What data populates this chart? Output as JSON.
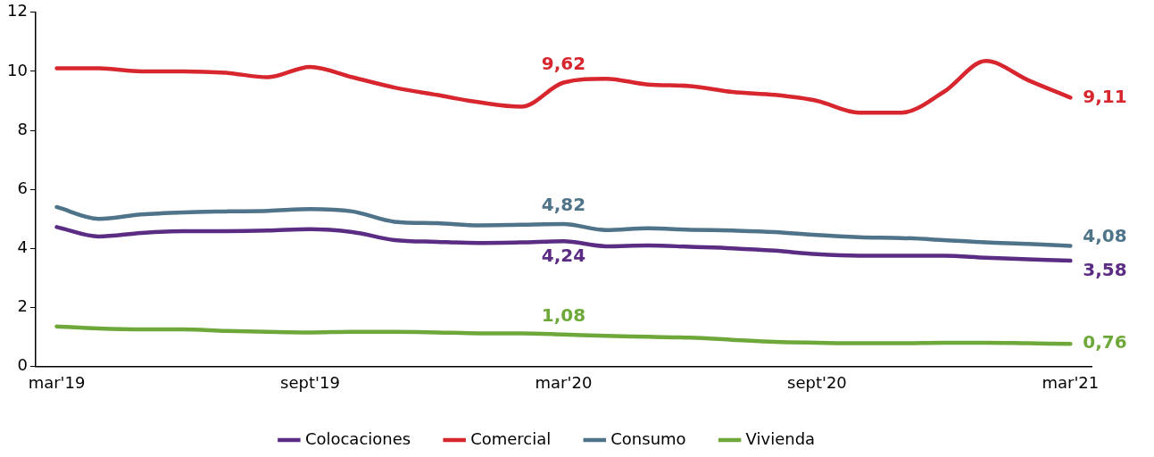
{
  "chart_data": {
    "type": "line",
    "categories": [
      "mar'19",
      null,
      null,
      null,
      null,
      null,
      "sept'19",
      null,
      null,
      null,
      null,
      null,
      "mar'20",
      null,
      null,
      null,
      null,
      null,
      "sept'20",
      null,
      null,
      null,
      null,
      null,
      "mar'21"
    ],
    "series": [
      {
        "name": "Colocaciones",
        "color": "#5b2c83",
        "values": [
          4.72,
          4.4,
          4.52,
          4.58,
          4.58,
          4.6,
          4.65,
          4.55,
          4.28,
          4.22,
          4.18,
          4.2,
          4.24,
          4.07,
          4.1,
          4.05,
          4.0,
          3.92,
          3.8,
          3.75,
          3.75,
          3.75,
          3.68,
          3.63,
          3.58
        ],
        "value_labels": [
          null,
          null,
          null,
          null,
          null,
          null,
          null,
          null,
          null,
          null,
          null,
          null,
          "4,24",
          null,
          null,
          null,
          null,
          null,
          null,
          null,
          null,
          null,
          null,
          null,
          "3,58"
        ]
      },
      {
        "name": "Comercial",
        "color": "#d7262e",
        "values": [
          10.1,
          10.1,
          10.0,
          10.0,
          9.95,
          9.8,
          10.15,
          9.8,
          9.45,
          9.2,
          8.95,
          8.8,
          9.62,
          9.75,
          9.55,
          9.5,
          9.3,
          9.2,
          9.0,
          8.6,
          8.6,
          9.3,
          10.35,
          9.7,
          9.11
        ],
        "value_labels": [
          null,
          null,
          null,
          null,
          null,
          null,
          null,
          null,
          null,
          null,
          null,
          null,
          "9,62",
          null,
          null,
          null,
          null,
          null,
          null,
          null,
          null,
          null,
          null,
          null,
          "9,11"
        ]
      },
      {
        "name": "Consumo",
        "color": "#4f7389",
        "values": [
          5.4,
          5.0,
          5.15,
          5.22,
          5.25,
          5.27,
          5.33,
          5.25,
          4.9,
          4.85,
          4.78,
          4.8,
          4.82,
          4.62,
          4.68,
          4.63,
          4.6,
          4.55,
          4.45,
          4.38,
          4.35,
          4.28,
          4.2,
          4.15,
          4.08
        ],
        "value_labels": [
          null,
          null,
          null,
          null,
          null,
          null,
          null,
          null,
          null,
          null,
          null,
          null,
          "4,82",
          null,
          null,
          null,
          null,
          null,
          null,
          null,
          null,
          null,
          null,
          null,
          "4,08"
        ]
      },
      {
        "name": "Vivienda",
        "color": "#6fa83a",
        "values": [
          1.35,
          1.28,
          1.25,
          1.25,
          1.2,
          1.17,
          1.15,
          1.17,
          1.17,
          1.15,
          1.12,
          1.12,
          1.08,
          1.03,
          1.0,
          0.97,
          0.9,
          0.83,
          0.8,
          0.78,
          0.78,
          0.8,
          0.8,
          0.78,
          0.76
        ],
        "value_labels": [
          null,
          null,
          null,
          null,
          null,
          null,
          null,
          null,
          null,
          null,
          null,
          null,
          "1,08",
          null,
          null,
          null,
          null,
          null,
          null,
          null,
          null,
          null,
          null,
          null,
          "0,76"
        ]
      }
    ],
    "ylim": [
      0,
      12
    ],
    "yticks": [
      0,
      2,
      4,
      6,
      8,
      10,
      12
    ],
    "grid": false,
    "legend": "bottom",
    "marker": "none",
    "line_style": "solid"
  }
}
